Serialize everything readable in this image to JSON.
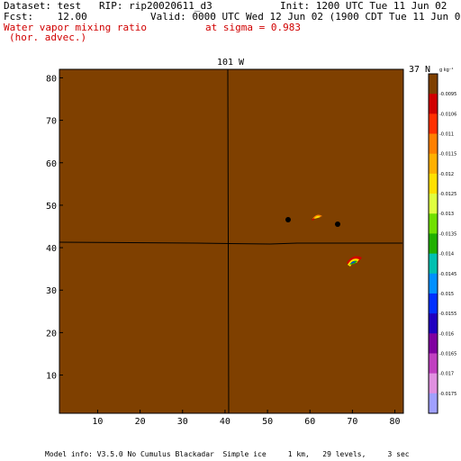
{
  "header": {
    "dataset": "Dataset: test   RIP: rip20020611_d3",
    "init": "Init: 1200 UTC Tue 11 Jun 02",
    "fcst": "Fcst:    12.00",
    "valid": "Valid: 0000 UTC Wed 12 Jun 02 (1900 CDT Tue 11 Jun 02)",
    "field_line1": "Water vapor mixing ratio",
    "field_line2": "(hor. advec.)",
    "level": "at sigma = 0.983"
  },
  "plot": {
    "top_label": "101 W",
    "right_label": "37 N",
    "field_color": "#7f4000",
    "x_ticks": [
      "10",
      "20",
      "30",
      "40",
      "50",
      "60",
      "70",
      "80"
    ],
    "y_ticks": [
      "10",
      "20",
      "30",
      "40",
      "50",
      "60",
      "70",
      "80"
    ]
  },
  "colorbar": {
    "unit": "g kg⁻¹",
    "labels": [
      "-0.0095",
      "-0.0106",
      "-0.011",
      "-0.0115",
      "-0.012",
      "-0.0125",
      "-0.013",
      "-0.0135",
      "-0.014",
      "-0.0145",
      "-0.015",
      "-0.0155",
      "-0.016",
      "-0.0165",
      "-0.017",
      "-0.0175"
    ],
    "colors": [
      "#7f4000",
      "#d00000",
      "#ff3000",
      "#ff8000",
      "#ffb000",
      "#ffe000",
      "#e0ff40",
      "#70e000",
      "#20b000",
      "#00c0b0",
      "#0090ff",
      "#0030ff",
      "#2000c0",
      "#8000a0",
      "#c040c0",
      "#e090e0",
      "#a0a0ff"
    ]
  },
  "footer": {
    "model_info": "Model info: V3.5.0 No Cumulus Blackadar  Simple ice     1 km,   29 levels,     3 sec"
  }
}
